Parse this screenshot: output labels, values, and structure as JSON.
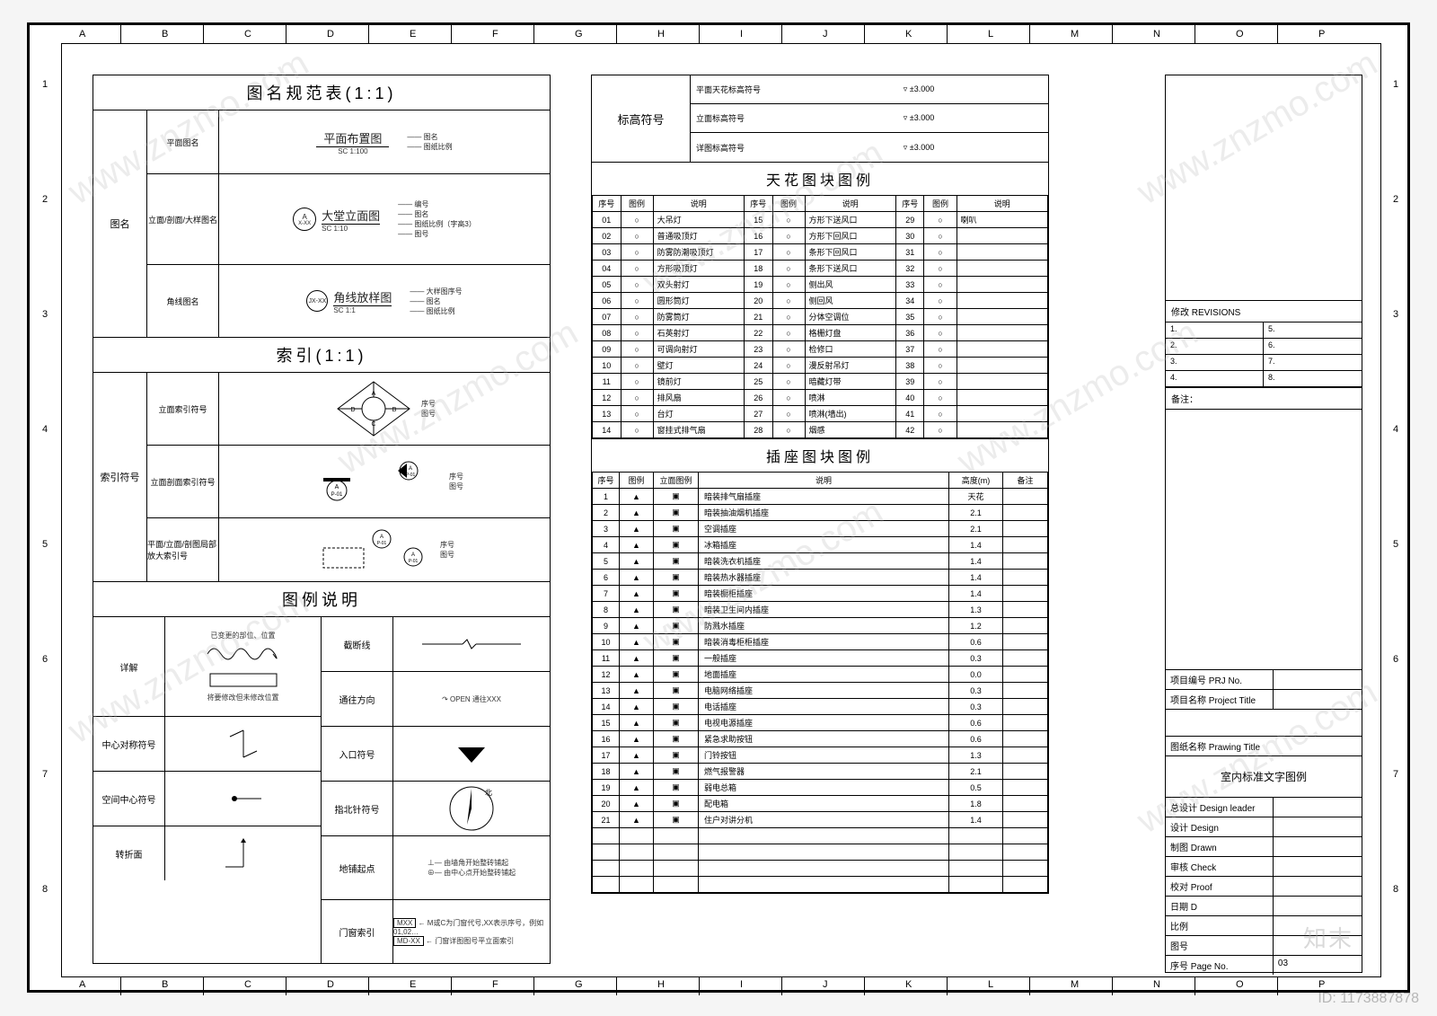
{
  "ruler_letters": [
    "A",
    "B",
    "C",
    "D",
    "E",
    "F",
    "G",
    "H",
    "I",
    "J",
    "K",
    "L",
    "M",
    "N",
    "O",
    "P"
  ],
  "ruler_nums": [
    "1",
    "2",
    "3",
    "4",
    "5",
    "6",
    "7",
    "8"
  ],
  "left": {
    "title1": "图名规范表(1:1)",
    "row1_label": "图名",
    "row1_sub1": "平面图名",
    "row1_sub2": "立面/剖面/大样图名",
    "row1_sub3": "角线图名",
    "fig1_name": "平面布置图",
    "fig1_scale": "SC  1:100",
    "fig1_a": "图名",
    "fig1_b": "图纸比例",
    "fig2_name": "大堂立面图",
    "fig2_scale": "SC  1:10",
    "fig2_num": "A",
    "fig2_sub": "X-XX",
    "fig2_a": "编号",
    "fig2_b": "图名",
    "fig2_c": "图纸比例（字高3）",
    "fig2_d": "图号",
    "fig3_name": "角线放样图",
    "fig3_scale": "SC  1:1",
    "fig3_num": "JX-XX",
    "fig3_a": "大样图序号",
    "fig3_b": "图名",
    "fig3_c": "图纸比例",
    "title2": "索引(1:1)",
    "idx_row_label": "索引符号",
    "idx_sub1": "立面索引符号",
    "idx_sub2": "立面剖面索引符号",
    "idx_sub3": "平面/立面/剖图局部放大索引号",
    "idx_tags": [
      "序号",
      "图号",
      "序号",
      "图号",
      "序号",
      "图号"
    ],
    "title3": "图例说明",
    "legend_rows_left": [
      {
        "label": "详解",
        "desc1": "已变更的部位、位置",
        "desc2": "将要修改但未修改位置"
      },
      {
        "label": "中心对称符号",
        "desc1": ""
      },
      {
        "label": "空间中心符号",
        "desc1": ""
      },
      {
        "label": "转折面",
        "desc1": ""
      }
    ],
    "legend_rows_right": [
      {
        "label": "截断线"
      },
      {
        "label": "通往方向",
        "note": "OPEN 通往XXX"
      },
      {
        "label": "入口符号"
      },
      {
        "label": "指北针符号",
        "note": "北"
      },
      {
        "label": "地铺起点",
        "note1": "由墙角开始整砖铺起",
        "note2": "由中心点开始整砖铺起"
      },
      {
        "label": "门窗索引",
        "note1": "MXX",
        "note2": "MD-XX",
        "note3": "M或C为门窗代号,XX表示序号，例如01,02…",
        "note4": "门窗详图图号平立面索引"
      }
    ]
  },
  "right": {
    "elev_title": "标高符号",
    "elev_rows": [
      {
        "label": "平面天花标高符号",
        "val": "±3.000"
      },
      {
        "label": "立面标高符号",
        "val": "±3.000"
      },
      {
        "label": "详图标高符号",
        "val": "±3.000"
      }
    ],
    "ceil_title": "天花图块图例",
    "ceil_headers": [
      "序号",
      "图例",
      "说明"
    ],
    "ceil_items": [
      {
        "n": "01",
        "d": "大吊灯"
      },
      {
        "n": "02",
        "d": "普通吸顶灯"
      },
      {
        "n": "03",
        "d": "防雾防潮吸顶灯"
      },
      {
        "n": "04",
        "d": "方形吸顶灯"
      },
      {
        "n": "05",
        "d": "双头射灯"
      },
      {
        "n": "06",
        "d": "圆形筒灯"
      },
      {
        "n": "07",
        "d": "防雾筒灯"
      },
      {
        "n": "08",
        "d": "石英射灯"
      },
      {
        "n": "09",
        "d": "可调向射灯"
      },
      {
        "n": "10",
        "d": "壁灯"
      },
      {
        "n": "11",
        "d": "镜前灯"
      },
      {
        "n": "12",
        "d": "排风扇"
      },
      {
        "n": "13",
        "d": "台灯"
      },
      {
        "n": "14",
        "d": "窗挂式排气扇"
      },
      {
        "n": "15",
        "d": "方形下送风口"
      },
      {
        "n": "16",
        "d": "方形下回风口"
      },
      {
        "n": "17",
        "d": "条形下回风口"
      },
      {
        "n": "18",
        "d": "条形下送风口"
      },
      {
        "n": "19",
        "d": "侧出风"
      },
      {
        "n": "20",
        "d": "侧回风"
      },
      {
        "n": "21",
        "d": "分体空调位"
      },
      {
        "n": "22",
        "d": "格栅灯盘"
      },
      {
        "n": "23",
        "d": "检修口"
      },
      {
        "n": "24",
        "d": "漫反射吊灯"
      },
      {
        "n": "25",
        "d": "暗藏灯带"
      },
      {
        "n": "26",
        "d": "喷淋"
      },
      {
        "n": "27",
        "d": "喷淋(墙出)"
      },
      {
        "n": "28",
        "d": "烟感"
      },
      {
        "n": "29",
        "d": "喇叭"
      },
      {
        "n": "30",
        "d": ""
      },
      {
        "n": "31",
        "d": ""
      },
      {
        "n": "32",
        "d": ""
      },
      {
        "n": "33",
        "d": ""
      },
      {
        "n": "34",
        "d": ""
      },
      {
        "n": "35",
        "d": ""
      },
      {
        "n": "36",
        "d": ""
      },
      {
        "n": "37",
        "d": ""
      },
      {
        "n": "38",
        "d": ""
      },
      {
        "n": "39",
        "d": ""
      },
      {
        "n": "40",
        "d": ""
      },
      {
        "n": "41",
        "d": ""
      },
      {
        "n": "42",
        "d": ""
      }
    ],
    "sock_title": "插座图块图例",
    "sock_headers": [
      "序号",
      "图例",
      "立面图例",
      "说明",
      "高度(m)",
      "备注"
    ],
    "sock_items": [
      {
        "n": "1",
        "d": "暗装排气扇插座",
        "h": "天花"
      },
      {
        "n": "2",
        "d": "暗装抽油烟机插座",
        "h": "2.1"
      },
      {
        "n": "3",
        "d": "空调插座",
        "h": "2.1"
      },
      {
        "n": "4",
        "d": "冰箱插座",
        "h": "1.4"
      },
      {
        "n": "5",
        "d": "暗装洗衣机插座",
        "h": "1.4"
      },
      {
        "n": "6",
        "d": "暗装热水器插座",
        "h": "1.4"
      },
      {
        "n": "7",
        "d": "暗装橱柜插座",
        "h": "1.4"
      },
      {
        "n": "8",
        "d": "暗装卫生间内插座",
        "h": "1.3"
      },
      {
        "n": "9",
        "d": "防溅水插座",
        "h": "1.2"
      },
      {
        "n": "10",
        "d": "暗装消毒柜柜插座",
        "h": "0.6"
      },
      {
        "n": "11",
        "d": "一般插座",
        "h": "0.3"
      },
      {
        "n": "12",
        "d": "地面插座",
        "h": "0.0"
      },
      {
        "n": "13",
        "d": "电脑网络插座",
        "h": "0.3"
      },
      {
        "n": "14",
        "d": "电话插座",
        "h": "0.3"
      },
      {
        "n": "15",
        "d": "电视电源插座",
        "h": "0.6"
      },
      {
        "n": "16",
        "d": "紧急求助按钮",
        "h": "0.6"
      },
      {
        "n": "17",
        "d": "门铃按钮",
        "h": "1.3"
      },
      {
        "n": "18",
        "d": "燃气报警器",
        "h": "2.1"
      },
      {
        "n": "19",
        "d": "弱电总箱",
        "h": "0.5"
      },
      {
        "n": "20",
        "d": "配电箱",
        "h": "1.8"
      },
      {
        "n": "21",
        "d": "住户对讲分机",
        "h": "1.4"
      }
    ]
  },
  "tb": {
    "rev_title": "修改  REVISIONS",
    "rev_nums": [
      "1.",
      "2.",
      "3.",
      "4.",
      "5.",
      "6.",
      "7.",
      "8."
    ],
    "rev_note": "备注：",
    "prj_no_lbl": "项目编号  PRJ No.",
    "prj_name_lbl": "项目名称  Project Title",
    "dwg_name_lbl": "图纸名称  Prawing Title",
    "dwg_name_val": "室内标准文字图例",
    "rows": [
      {
        "l": "总设计  Design leader",
        "v": ""
      },
      {
        "l": "设计    Design",
        "v": ""
      },
      {
        "l": "制图    Drawn",
        "v": ""
      },
      {
        "l": "审核    Check",
        "v": ""
      },
      {
        "l": "校对    Proof",
        "v": ""
      },
      {
        "l": "日期    D",
        "v": ""
      },
      {
        "l": "比例    ",
        "v": ""
      },
      {
        "l": "图号    ",
        "v": ""
      },
      {
        "l": "序号    Page No.",
        "v": "03"
      }
    ]
  },
  "stamp_id": "ID: 1173887878",
  "stamp_logo": "知末",
  "watermark_text": "www.znzmo.com"
}
